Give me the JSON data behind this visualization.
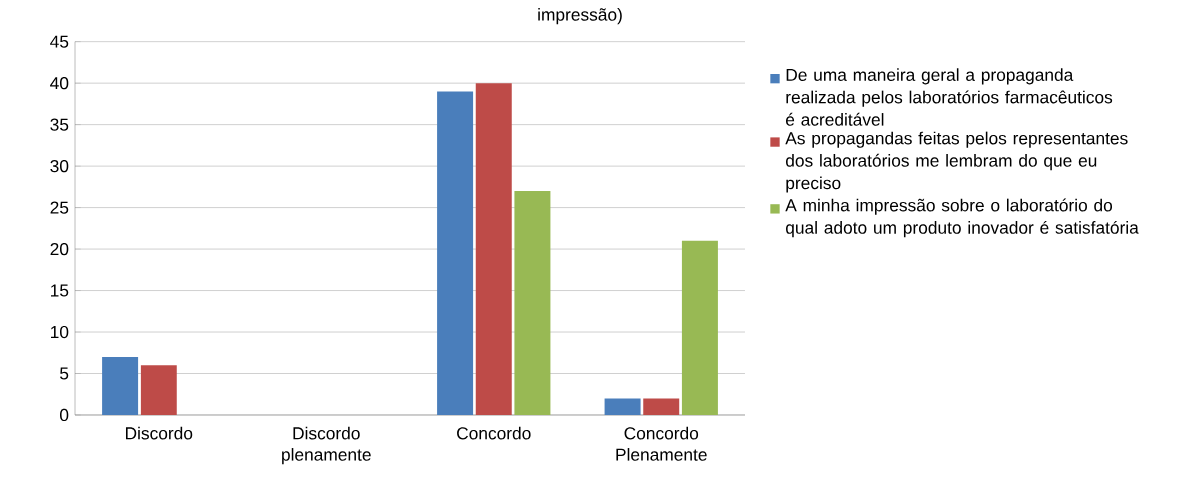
{
  "chart_data": {
    "type": "bar",
    "title": "impressão)",
    "categories": [
      "Discordo",
      "Discordo plenamente",
      "Concordo",
      "Concordo Plenamente"
    ],
    "series": [
      {
        "name": "De uma maneira geral a propaganda realizada pelos laboratórios farmacêuticos é acreditável",
        "color": "#4a7ebb",
        "values": [
          7,
          0,
          39,
          2
        ]
      },
      {
        "name": "As propagandas feitas pelos representantes dos laboratórios me lembram do que eu preciso",
        "color": "#be4b48",
        "values": [
          6,
          0,
          40,
          2
        ]
      },
      {
        "name": "A minha impressão sobre o laboratório do qual adoto um produto inovador é satisfatória",
        "color": "#98b954",
        "values": [
          0,
          0,
          27,
          21
        ]
      }
    ],
    "ylim": [
      0,
      45
    ],
    "yticks": [
      0,
      5,
      10,
      15,
      20,
      25,
      30,
      35,
      40,
      45
    ],
    "grid": "y",
    "legend": "right"
  }
}
